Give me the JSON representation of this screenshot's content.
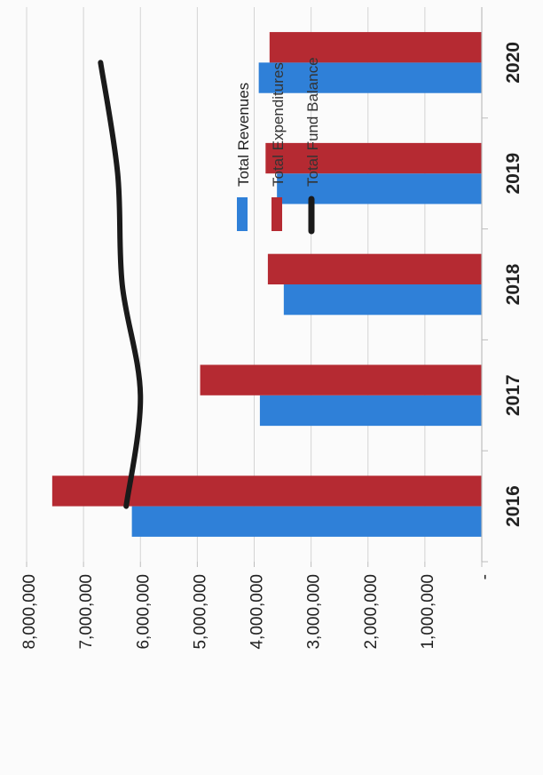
{
  "chart_data": {
    "type": "bar",
    "categories": [
      "2016",
      "2017",
      "2018",
      "2019",
      "2020"
    ],
    "series": [
      {
        "name": "Total Revenues",
        "kind": "bar",
        "color": "#2f80d8",
        "values": [
          6150000,
          3900000,
          3480000,
          3600000,
          3920000
        ]
      },
      {
        "name": "Total Expenditures",
        "kind": "bar",
        "color": "#b52a32",
        "values": [
          7550000,
          4950000,
          3760000,
          3800000,
          3730000
        ]
      },
      {
        "name": "Total Fund Balance",
        "kind": "line",
        "color": "#1a1a1a",
        "values": [
          6250000,
          6000000,
          6320000,
          6400000,
          6700000
        ]
      }
    ],
    "value_ticks": [
      "-",
      "1,000,000",
      "2,000,000",
      "3,000,000",
      "4,000,000",
      "5,000,000",
      "6,000,000",
      "7,000,000",
      "8,000,000"
    ],
    "ylim": [
      0,
      8000000
    ],
    "grid": true,
    "orientation": "rotated-90-ccw",
    "legend_position": "inside-top-right"
  }
}
